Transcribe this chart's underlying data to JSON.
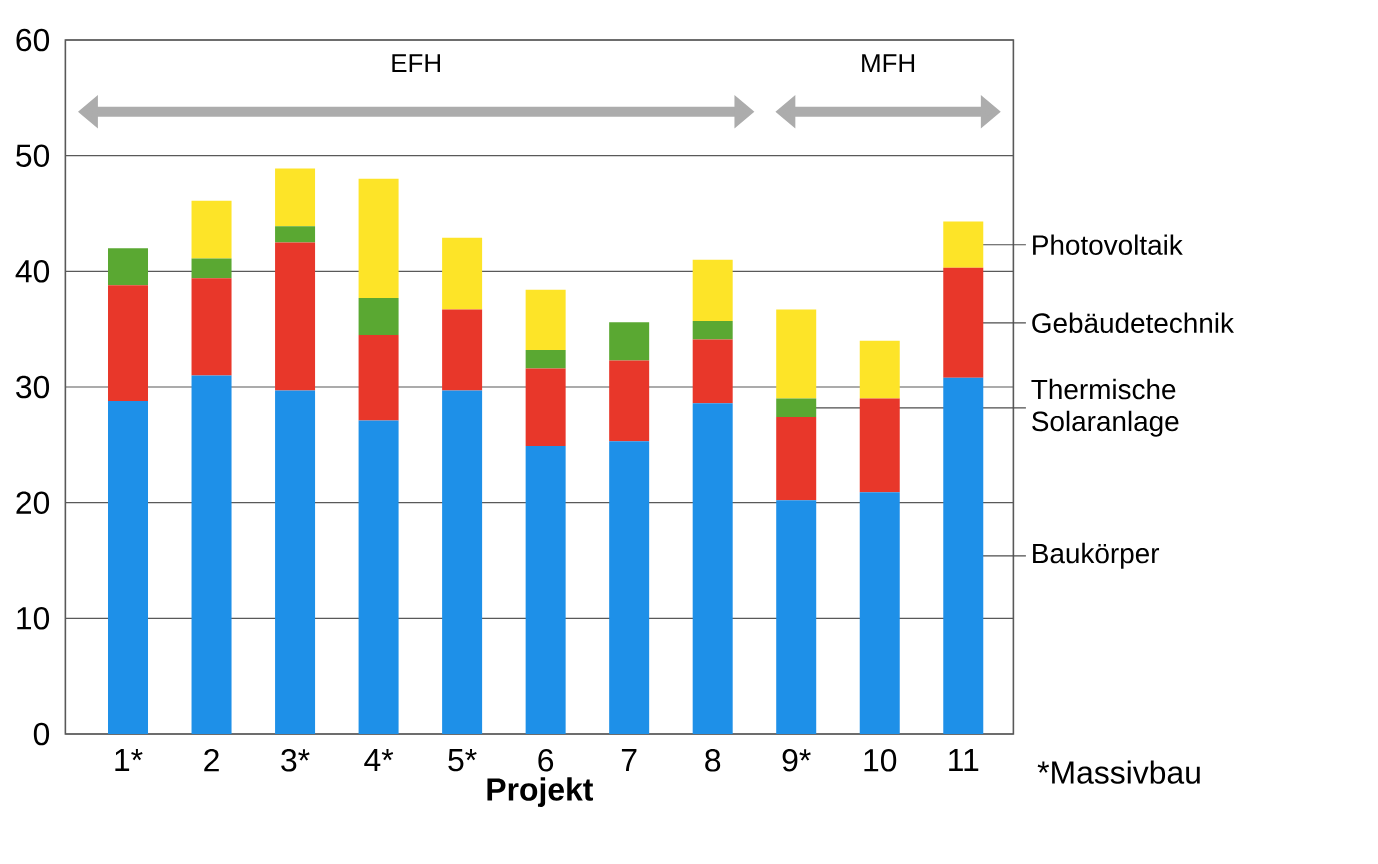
{
  "chart_data": {
    "type": "bar",
    "stacked": true,
    "xlabel": "Projekt",
    "categories": [
      "1*",
      "2",
      "3*",
      "4*",
      "5*",
      "6",
      "7",
      "8",
      "9*",
      "10",
      "11"
    ],
    "series": [
      {
        "name": "Baukörper",
        "color": "#1e90e8",
        "values": [
          28.8,
          31.0,
          29.7,
          27.1,
          29.7,
          24.9,
          25.3,
          28.6,
          20.2,
          20.9,
          30.8
        ]
      },
      {
        "name": "Gebäudetechnik",
        "color": "#e8372a",
        "values": [
          10.0,
          8.4,
          12.8,
          7.4,
          7.0,
          6.7,
          7.0,
          5.5,
          7.2,
          8.1,
          9.5
        ]
      },
      {
        "name": "Thermische Solaranlage",
        "color": "#5aa832",
        "values": [
          3.2,
          1.7,
          1.4,
          3.2,
          0,
          1.6,
          3.3,
          1.6,
          1.6,
          0,
          0
        ]
      },
      {
        "name": "Photovoltaik",
        "color": "#fde428",
        "values": [
          0,
          5.0,
          5.0,
          10.3,
          6.2,
          5.2,
          0,
          5.3,
          7.7,
          5.0,
          4.0
        ]
      }
    ],
    "ylim": [
      0,
      60
    ],
    "yticks": [
      0,
      10,
      20,
      30,
      40,
      50,
      60
    ],
    "grid": "y",
    "annotations": [
      "EFH",
      "MFH",
      "*Massivbau"
    ]
  }
}
